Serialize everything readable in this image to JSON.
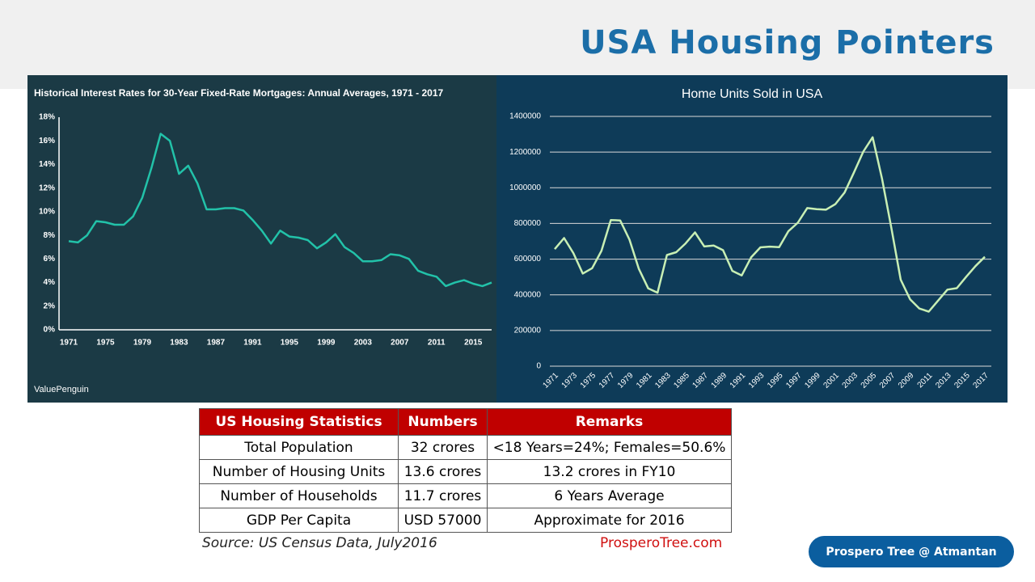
{
  "header": {
    "title": "USA Housing Pointers"
  },
  "chart_data": [
    {
      "type": "line",
      "title": "Historical Interest Rates for 30-Year Fixed-Rate Mortgages: Annual Averages, 1971 - 2017",
      "source": "ValuePenguin",
      "color": "#22c2a9",
      "x": [
        1971,
        1972,
        1973,
        1974,
        1975,
        1976,
        1977,
        1978,
        1979,
        1980,
        1981,
        1982,
        1983,
        1984,
        1985,
        1986,
        1987,
        1988,
        1989,
        1990,
        1991,
        1992,
        1993,
        1994,
        1995,
        1996,
        1997,
        1998,
        1999,
        2000,
        2001,
        2002,
        2003,
        2004,
        2005,
        2006,
        2007,
        2008,
        2009,
        2010,
        2011,
        2012,
        2013,
        2014,
        2015,
        2016,
        2017
      ],
      "values": [
        7.5,
        7.4,
        8.0,
        9.2,
        9.1,
        8.9,
        8.9,
        9.6,
        11.2,
        13.7,
        16.6,
        16.0,
        13.2,
        13.9,
        12.4,
        10.2,
        10.2,
        10.3,
        10.3,
        10.1,
        9.3,
        8.4,
        7.3,
        8.4,
        7.9,
        7.8,
        7.6,
        6.9,
        7.4,
        8.1,
        7.0,
        6.5,
        5.8,
        5.8,
        5.9,
        6.4,
        6.3,
        6.0,
        5.0,
        4.7,
        4.5,
        3.7,
        4.0,
        4.2,
        3.9,
        3.7,
        4.0
      ],
      "xlim": [
        1971,
        2017
      ],
      "xticks": [
        1971,
        1975,
        1979,
        1983,
        1987,
        1991,
        1995,
        1999,
        2003,
        2007,
        2011,
        2015
      ],
      "ylim": [
        0,
        18
      ],
      "yticks": [
        {
          "value": 0,
          "label": "0%"
        },
        {
          "value": 2,
          "label": "2%"
        },
        {
          "value": 4,
          "label": "4%"
        },
        {
          "value": 6,
          "label": "6%"
        },
        {
          "value": 8,
          "label": "8%"
        },
        {
          "value": 10,
          "label": "10%"
        },
        {
          "value": 12,
          "label": "12%"
        },
        {
          "value": 14,
          "label": "14%"
        },
        {
          "value": 16,
          "label": "16%"
        },
        {
          "value": 18,
          "label": "18%"
        }
      ],
      "grid": false
    },
    {
      "type": "line",
      "title": "Home Units Sold in USA",
      "color": "#c8efb4",
      "x": [
        1971,
        1972,
        1973,
        1974,
        1975,
        1976,
        1977,
        1978,
        1979,
        1980,
        1981,
        1982,
        1983,
        1984,
        1985,
        1986,
        1987,
        1988,
        1989,
        1990,
        1991,
        1992,
        1993,
        1994,
        1995,
        1996,
        1997,
        1998,
        1999,
        2000,
        2001,
        2002,
        2003,
        2004,
        2005,
        2006,
        2007,
        2008,
        2009,
        2010,
        2011,
        2012,
        2013,
        2014,
        2015,
        2016,
        2017
      ],
      "values": [
        656000,
        718000,
        634000,
        519000,
        549000,
        646000,
        819000,
        817000,
        709000,
        545000,
        436000,
        412000,
        623000,
        639000,
        688000,
        750000,
        671000,
        676000,
        650000,
        534000,
        509000,
        610000,
        666000,
        670000,
        667000,
        757000,
        804000,
        886000,
        880000,
        877000,
        908000,
        973000,
        1086000,
        1203000,
        1283000,
        1051000,
        776000,
        485000,
        375000,
        323000,
        306000,
        368000,
        429000,
        437000,
        501000,
        561000,
        613000
      ],
      "xlim": [
        1971,
        2017
      ],
      "xticks": [
        1971,
        1973,
        1975,
        1977,
        1979,
        1981,
        1983,
        1985,
        1987,
        1989,
        1991,
        1993,
        1995,
        1997,
        1999,
        2001,
        2003,
        2005,
        2007,
        2009,
        2011,
        2013,
        2015,
        2017
      ],
      "ylim": [
        0,
        1400000
      ],
      "yticks": [
        0,
        200000,
        400000,
        600000,
        800000,
        1000000,
        1200000,
        1400000
      ],
      "grid": true
    }
  ],
  "table": {
    "header": [
      "US Housing Statistics",
      "Numbers",
      "Remarks"
    ],
    "rows": [
      [
        "Total Population",
        "32 crores",
        "<18 Years=24%; Females=50.6%"
      ],
      [
        "Number of Housing Units",
        "13.6 crores",
        "13.2 crores in FY10"
      ],
      [
        "Number of Households",
        "11.7 crores",
        "6 Years Average"
      ],
      [
        "GDP Per Capita",
        "USD 57000",
        "Approximate for 2016"
      ]
    ]
  },
  "footer": {
    "source": "Source: US Census Data, July2016",
    "site": "ProsperoTree.com",
    "button": "Prospero Tree @ Atmantan"
  }
}
